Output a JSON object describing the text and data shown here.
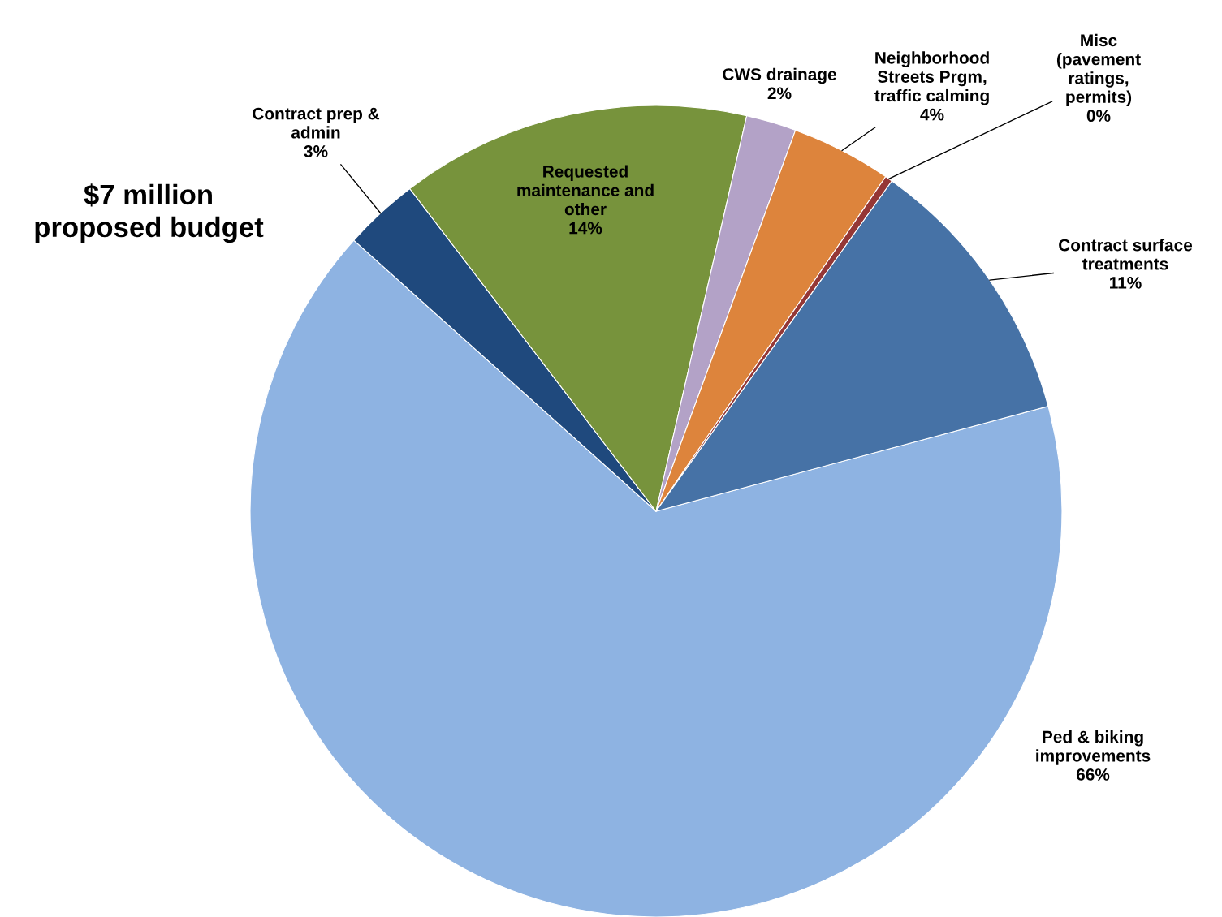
{
  "chart_data": {
    "type": "pie",
    "title": "$7 million\nproposed budget",
    "categories": [
      "Ped & biking\nimprovements",
      "Contract prep &\nadmin",
      "Requested\nmaintenance and\nother",
      "CWS drainage",
      "Neighborhood\nStreets Prgm,\ntraffic calming",
      "Misc\n(pavement\nratings,\npermits)",
      "Contract surface\ntreatments"
    ],
    "values": [
      66,
      3,
      14,
      2,
      4,
      0.3,
      11
    ],
    "value_labels": [
      "66%",
      "3%",
      "14%",
      "2%",
      "4%",
      "0%",
      "11%"
    ],
    "colors": [
      "#8eb3e2",
      "#1f497d",
      "#77933c",
      "#b3a2c7",
      "#dd843c",
      "#953735",
      "#4672a6"
    ],
    "legend": false
  }
}
